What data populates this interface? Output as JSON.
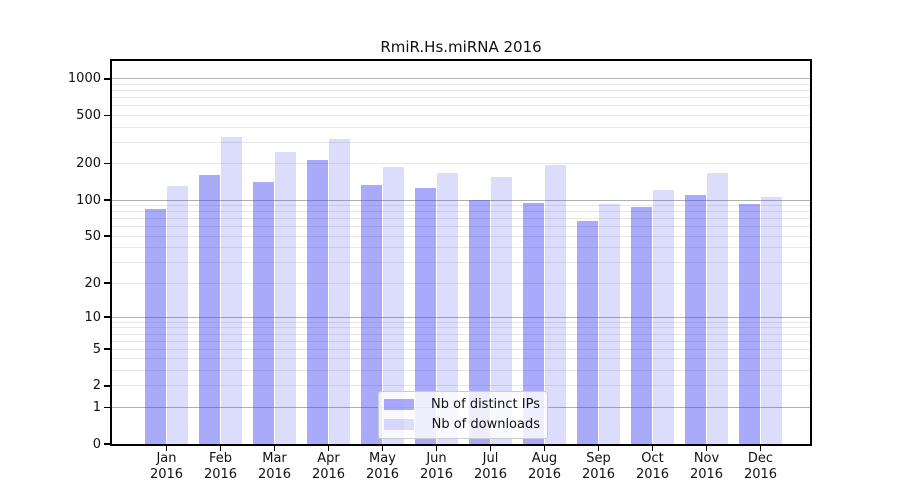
{
  "title": "RmiR.Hs.miRNA 2016",
  "colors": {
    "bar_distinct_ips": "rgba(62,62,243,0.44)",
    "bar_downloads": "rgba(62,62,243,0.18)",
    "grid_major": "#b0b0b0",
    "grid_minor": "#e7e7e7",
    "axis": "#000000"
  },
  "chart_data": {
    "type": "bar",
    "title": "RmiR.Hs.miRNA 2016",
    "categories": [
      "Jan",
      "Feb",
      "Mar",
      "Apr",
      "May",
      "Jun",
      "Jul",
      "Aug",
      "Sep",
      "Oct",
      "Nov",
      "Dec"
    ],
    "year_label": "2016",
    "series": [
      {
        "name": "Nb of distinct IPs",
        "color": "rgba(62,62,243,0.44)",
        "values": [
          85,
          162,
          141,
          214,
          133,
          125,
          100,
          95,
          67,
          88,
          110,
          93
        ]
      },
      {
        "name": "Nb of downloads",
        "color": "rgba(62,62,243,0.18)",
        "values": [
          131,
          335,
          252,
          319,
          188,
          168,
          156,
          196,
          92,
          122,
          168,
          107
        ]
      }
    ],
    "y_axis": {
      "scale": "log1p",
      "ticks": [
        0,
        1,
        2,
        5,
        10,
        20,
        50,
        100,
        200,
        500,
        1000
      ],
      "major_gridlines": [
        1,
        10,
        100,
        1000
      ],
      "minor_gridlines": [
        2,
        3,
        4,
        5,
        6,
        7,
        8,
        9,
        20,
        30,
        40,
        50,
        60,
        70,
        80,
        90,
        200,
        300,
        400,
        500,
        600,
        700,
        800,
        900
      ],
      "ylim": [
        0,
        1400
      ]
    },
    "xlabel": "",
    "ylabel": "",
    "grid": true,
    "legend_position": "lower center"
  }
}
